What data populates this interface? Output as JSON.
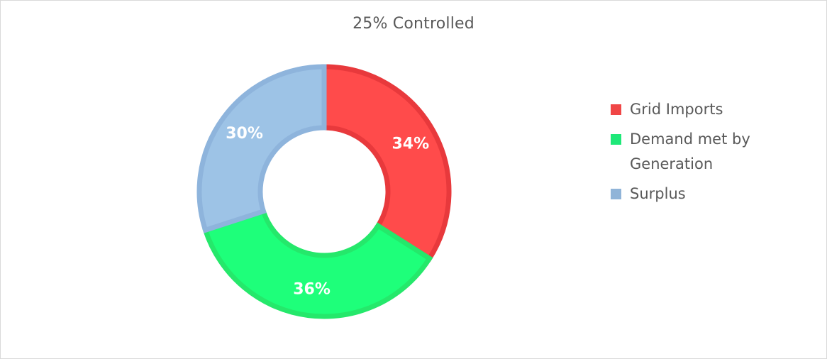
{
  "chart_data": {
    "type": "pie",
    "donut": true,
    "title": "25% Controlled",
    "categories": [
      "Grid Imports",
      "Demand met by Generation",
      "Surplus"
    ],
    "values": [
      34,
      36,
      30
    ],
    "labels": [
      "34%",
      "36%",
      "30%"
    ],
    "colors": [
      "#ff4b4b",
      "#1eff7a",
      "#9dc3e6"
    ],
    "border_colors": [
      "#e8393c",
      "#25e86b",
      "#8eb4dc"
    ],
    "legend_position": "right",
    "legend_colors": [
      "#f04646",
      "#1ee878",
      "#90b4d8"
    ]
  }
}
